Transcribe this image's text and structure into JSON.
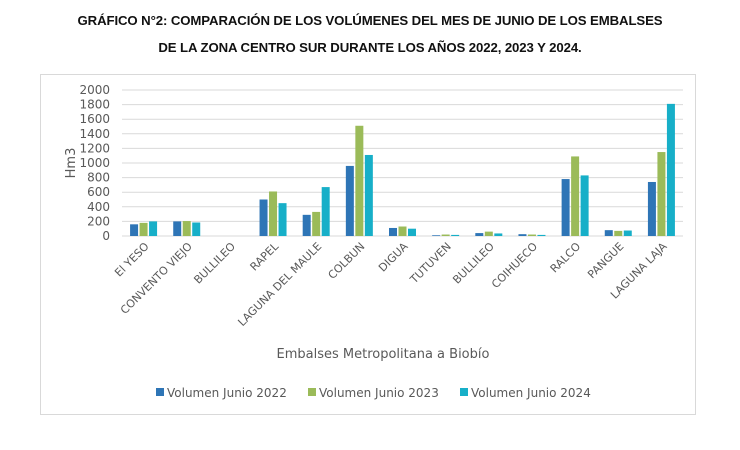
{
  "header": {
    "title_line1": "GRÁFICO N°2: COMPARACIÓN DE LOS VOLÚMENES DEL MES DE JUNIO DE LOS EMBALSES",
    "title_line2": "DE LA ZONA CENTRO SUR DURANTE LOS AÑOS 2022, 2023 Y 2024."
  },
  "chart_data": {
    "type": "bar",
    "title": "GRÁFICO N°2: COMPARACIÓN DE LOS VOLÚMENES DEL MES DE JUNIO DE LOS EMBALSES DE LA ZONA CENTRO SUR DURANTE LOS AÑOS 2022, 2023 Y 2024.",
    "xlabel": "Embalses Metropolitana a Biobío",
    "ylabel": "Hm3",
    "ylim": [
      0,
      2000
    ],
    "yticks": [
      0,
      200,
      400,
      600,
      800,
      1000,
      1200,
      1400,
      1600,
      1800,
      2000
    ],
    "grid": true,
    "legend_position": "bottom",
    "categories": [
      "El YESO",
      "CONVENTO VIEJO",
      "BULLILEO",
      "RAPEL",
      "LAGUNA DEL MAULE",
      "COLBUN",
      "DIGUA",
      "TUTUVEN",
      "BULLILEO",
      "COIHUECO",
      "RALCO",
      "PANGUE",
      "LAGUNA LAJA"
    ],
    "series": [
      {
        "name": "Volumen  Junio 2022",
        "color": "#2E75B6",
        "values": [
          160,
          200,
          0,
          500,
          290,
          960,
          110,
          10,
          40,
          25,
          780,
          80,
          740
        ]
      },
      {
        "name": "Volumen  Junio 2023",
        "color": "#9BBB59",
        "values": [
          180,
          205,
          0,
          610,
          330,
          1510,
          130,
          20,
          60,
          20,
          1090,
          70,
          1150
        ]
      },
      {
        "name": "Volumen  Junio 2024",
        "color": "#17AFC8",
        "values": [
          200,
          185,
          0,
          450,
          670,
          1110,
          100,
          15,
          35,
          15,
          830,
          75,
          1810
        ]
      }
    ]
  }
}
